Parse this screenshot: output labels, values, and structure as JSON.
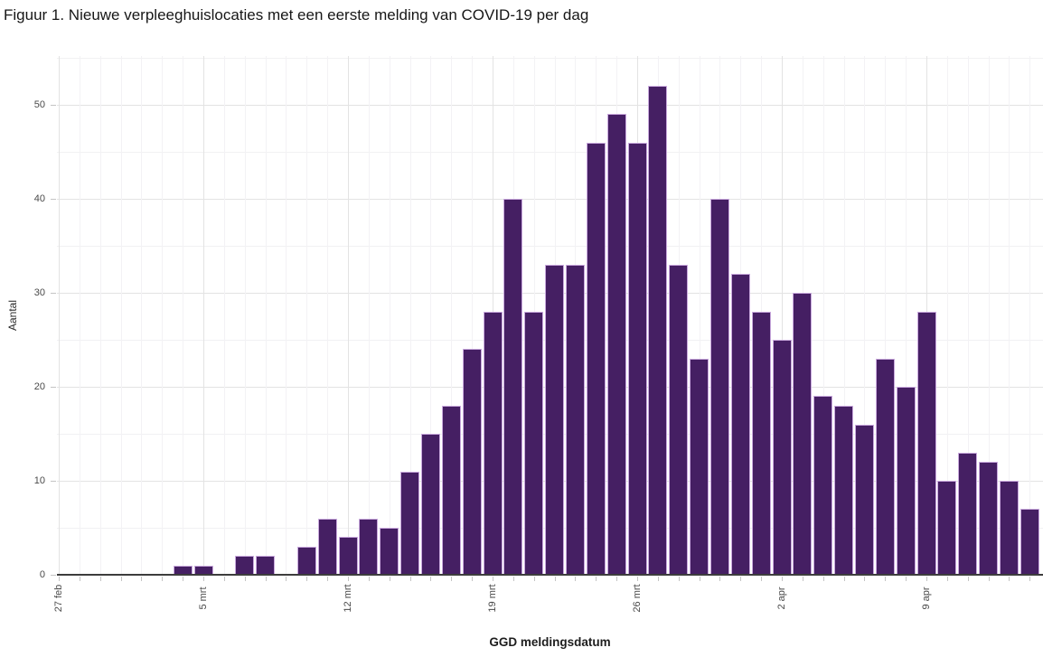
{
  "page": {
    "title": "Figuur 1. Nieuwe verpleeghuislocaties met een eerste melding van COVID-19 per dag"
  },
  "chart_data": {
    "type": "bar",
    "title": "Figuur 1. Nieuwe verpleeghuislocaties met een eerste melding van COVID-19 per dag",
    "xlabel": "GGD meldingsdatum",
    "ylabel": "Aantal",
    "categories": [
      "27 feb",
      "28 feb",
      "29 feb",
      "1 mrt",
      "2 mrt",
      "3 mrt",
      "4 mrt",
      "5 mrt",
      "6 mrt",
      "7 mrt",
      "8 mrt",
      "9 mrt",
      "10 mrt",
      "11 mrt",
      "12 mrt",
      "13 mrt",
      "14 mrt",
      "15 mrt",
      "16 mrt",
      "17 mrt",
      "18 mrt",
      "19 mrt",
      "20 mrt",
      "21 mrt",
      "22 mrt",
      "23 mrt",
      "24 mrt",
      "25 mrt",
      "26 mrt",
      "27 mrt",
      "28 mrt",
      "29 mrt",
      "30 mrt",
      "31 mrt",
      "1 apr",
      "2 apr",
      "3 apr",
      "4 apr",
      "5 apr",
      "6 apr",
      "7 apr",
      "8 apr",
      "9 apr",
      "10 apr",
      "11 apr",
      "12 apr",
      "13 apr",
      "14 apr"
    ],
    "values": [
      0,
      0,
      0,
      0,
      0,
      0,
      1,
      1,
      0,
      2,
      2,
      0,
      3,
      6,
      4,
      6,
      5,
      11,
      15,
      18,
      24,
      28,
      40,
      28,
      33,
      33,
      46,
      49,
      46,
      52,
      33,
      23,
      40,
      32,
      28,
      25,
      30,
      19,
      18,
      16,
      23,
      20,
      28,
      10,
      13,
      12,
      10,
      7
    ],
    "x_tick_labels": [
      "27 feb",
      "5 mrt",
      "12 mrt",
      "19 mrt",
      "26 mrt",
      "2 apr",
      "9 apr"
    ],
    "x_tick_indices": [
      0,
      7,
      14,
      21,
      28,
      35,
      42
    ],
    "y_ticks": [
      0,
      10,
      20,
      30,
      40,
      50
    ],
    "y_minor_ticks": [
      5,
      15,
      25,
      35,
      45,
      55
    ],
    "ylim": [
      0,
      55.2
    ],
    "grid": "major and minor, horizontal and vertical, light gray on white",
    "legend": "none",
    "colors": {
      "bar_fill": "#451f63",
      "bar_stroke": "#c9a9dd",
      "axis_line": "#3d3d3d",
      "grid_major": "#e3e3e3",
      "grid_minor": "#f1f1f3",
      "grid_daily": "#f3f2f5",
      "tick_mark": "#c4c4c4",
      "tick_label": "#4a4a4a"
    }
  }
}
